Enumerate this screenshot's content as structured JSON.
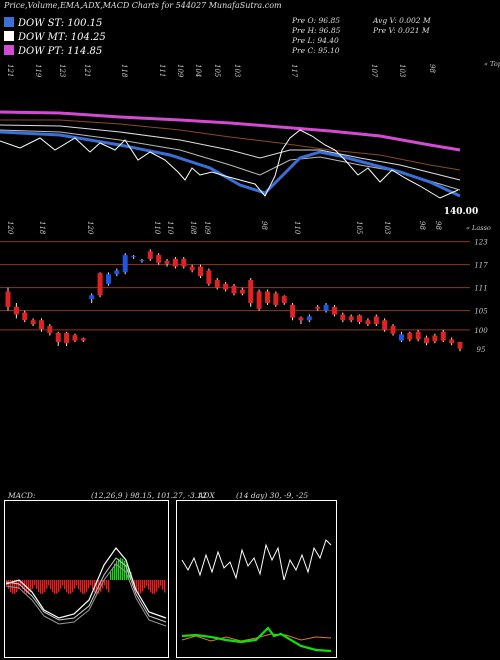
{
  "header": {
    "title": "Price,Volume,EMA,ADX,MACD Charts for 544027 MunafaSutra.com"
  },
  "legend": [
    {
      "label": "DOW ST: 100.15",
      "color": "#3a6fd8"
    },
    {
      "label": "DOW MT: 104.25",
      "color": "#ffffff"
    },
    {
      "label": "DOW PT: 114.85",
      "color": "#d24bd2"
    }
  ],
  "ohlc": {
    "open": "Pre  O: 96.85",
    "high": "Pre  H: 96.85",
    "low": "Pre  L: 94.40",
    "close": "Pre  C: 95.10",
    "avg_volume": "Avg V: 0.002  M",
    "pre_volume": "Pre  V: 0.021  M"
  },
  "top_scale_labels": [
    "121",
    "119",
    "123",
    "121",
    "118",
    "111",
    "109",
    "104",
    "105",
    "103",
    "117",
    "107",
    "103",
    "98"
  ],
  "top_scale_tag": "« Topo",
  "price_last": "140.00",
  "middle_scale_labels": [
    "120",
    "118",
    "120",
    "110",
    "110",
    "108",
    "109",
    "98",
    "110",
    "105",
    "103",
    "98",
    "98"
  ],
  "middle_scale_tag": "« Lasso",
  "price_levels": [
    "123",
    "117",
    "111",
    "105",
    "100",
    "95"
  ],
  "indicators": {
    "macd_label": "MACD:",
    "macd_values": "(12,26,9 ) 98.15,  101.27,  -3.12",
    "adx_label": "ADX",
    "adx_values": "(14  day) 30,  -9,  -25"
  },
  "colors": {
    "up": "#1f55e0",
    "down": "#e02222",
    "level_line": "#8a3a1e",
    "ema_pink": "#d24bd2",
    "macd_hist_pos": "#22cc22",
    "macd_hist_neg": "#e02222",
    "adx_green": "#11dd11",
    "adx_orange": "#e07a1a"
  },
  "chart_data": {
    "type": "candlestick",
    "title": "Price,Volume,EMA,ADX,MACD Charts for 544027 MunafaSutra.com",
    "ylabels": [
      123,
      117,
      111,
      105,
      100,
      95
    ],
    "ylim": [
      92,
      126
    ],
    "candles": [
      {
        "o": 110,
        "c": 106,
        "h": 111,
        "l": 105
      },
      {
        "o": 106,
        "c": 104,
        "h": 107,
        "l": 103
      },
      {
        "o": 104.5,
        "c": 102.5,
        "h": 105,
        "l": 102
      },
      {
        "o": 102.5,
        "c": 101.5,
        "h": 103,
        "l": 101
      },
      {
        "o": 102.5,
        "c": 100.2,
        "h": 103,
        "l": 99.5
      },
      {
        "o": 101,
        "c": 99.2,
        "h": 101.5,
        "l": 98.5
      },
      {
        "o": 99.2,
        "c": 96.8,
        "h": 99.5,
        "l": 95.8
      },
      {
        "o": 99.2,
        "c": 96.5,
        "h": 99.5,
        "l": 95.8
      },
      {
        "o": 98.6,
        "c": 97.2,
        "h": 99,
        "l": 96.8
      },
      {
        "o": 97.8,
        "c": 97.2,
        "h": 98,
        "l": 96.8
      },
      {
        "o": 108,
        "c": 109,
        "h": 109.5,
        "l": 107
      },
      {
        "o": 114.8,
        "c": 109,
        "h": 115,
        "l": 108.5
      },
      {
        "o": 112,
        "c": 114.5,
        "h": 115,
        "l": 111.5
      },
      {
        "o": 114.5,
        "c": 115.5,
        "h": 116,
        "l": 114
      },
      {
        "o": 115,
        "c": 119.5,
        "h": 120,
        "l": 114.5
      },
      {
        "o": 119,
        "c": 119.2,
        "h": 119.5,
        "l": 118.5
      },
      {
        "o": 118,
        "c": 118.2,
        "h": 118.5,
        "l": 117.5
      },
      {
        "o": 120.5,
        "c": 118.5,
        "h": 121,
        "l": 118
      },
      {
        "o": 119.5,
        "c": 117.5,
        "h": 120,
        "l": 117
      },
      {
        "o": 118,
        "c": 117.2,
        "h": 118.5,
        "l": 116.5
      },
      {
        "o": 118.5,
        "c": 116.5,
        "h": 119,
        "l": 116
      },
      {
        "o": 118.5,
        "c": 116.5,
        "h": 119,
        "l": 116
      },
      {
        "o": 116.5,
        "c": 115.5,
        "h": 117,
        "l": 115
      },
      {
        "o": 116.5,
        "c": 114,
        "h": 117,
        "l": 113.5
      },
      {
        "o": 115.5,
        "c": 112,
        "h": 116,
        "l": 111.5
      },
      {
        "o": 113,
        "c": 111,
        "h": 113.5,
        "l": 110.5
      },
      {
        "o": 112,
        "c": 110.5,
        "h": 112.5,
        "l": 110
      },
      {
        "o": 111.5,
        "c": 109.5,
        "h": 112,
        "l": 109
      },
      {
        "o": 110.5,
        "c": 109.5,
        "h": 111,
        "l": 109
      },
      {
        "o": 113,
        "c": 107,
        "h": 113.5,
        "l": 106
      },
      {
        "o": 110,
        "c": 105.5,
        "h": 110.5,
        "l": 105
      },
      {
        "o": 110,
        "c": 107,
        "h": 110.5,
        "l": 106.5
      },
      {
        "o": 109.5,
        "c": 106.5,
        "h": 110,
        "l": 106
      },
      {
        "o": 108.8,
        "c": 107,
        "h": 109,
        "l": 106.5
      },
      {
        "o": 106.5,
        "c": 103.2,
        "h": 107,
        "l": 102.5
      },
      {
        "o": 103.2,
        "c": 102.5,
        "h": 103.5,
        "l": 101.5
      },
      {
        "o": 102.5,
        "c": 103.5,
        "h": 104,
        "l": 102
      },
      {
        "o": 106,
        "c": 105.5,
        "h": 106.5,
        "l": 105
      },
      {
        "o": 105,
        "c": 106.5,
        "h": 107,
        "l": 104.5
      },
      {
        "o": 106,
        "c": 104,
        "h": 106.5,
        "l": 103.5
      },
      {
        "o": 104,
        "c": 102.5,
        "h": 104.5,
        "l": 102
      },
      {
        "o": 103.5,
        "c": 102.5,
        "h": 104,
        "l": 102
      },
      {
        "o": 103.8,
        "c": 102,
        "h": 104,
        "l": 101.5
      },
      {
        "o": 102.5,
        "c": 101.5,
        "h": 103,
        "l": 101
      },
      {
        "o": 103.5,
        "c": 101.5,
        "h": 104,
        "l": 101
      },
      {
        "o": 102.5,
        "c": 100,
        "h": 103,
        "l": 99.5
      },
      {
        "o": 101,
        "c": 99,
        "h": 101.5,
        "l": 98.5
      },
      {
        "o": 97.2,
        "c": 98.8,
        "h": 99.5,
        "l": 96.8
      },
      {
        "o": 99.2,
        "c": 97.5,
        "h": 99.5,
        "l": 97
      },
      {
        "o": 99.5,
        "c": 97.5,
        "h": 100,
        "l": 97
      },
      {
        "o": 98,
        "c": 96.5,
        "h": 98.5,
        "l": 96
      },
      {
        "o": 98.5,
        "c": 97,
        "h": 99,
        "l": 96.5
      },
      {
        "o": 99.5,
        "c": 97.2,
        "h": 100,
        "l": 96.8
      },
      {
        "o": 97.5,
        "c": 96.5,
        "h": 98,
        "l": 96
      },
      {
        "o": 96.85,
        "c": 95.1,
        "h": 96.85,
        "l": 94.4
      }
    ]
  }
}
